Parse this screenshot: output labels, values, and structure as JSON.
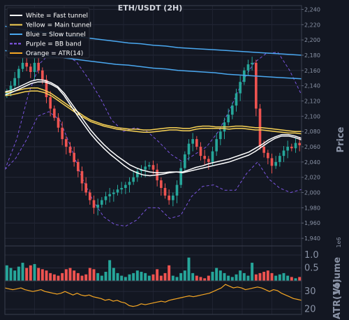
{
  "chart_data": {
    "type": "candlestick",
    "title": "ETH/USDT (2H)",
    "price_panel": {
      "ylabel": "Price",
      "yticks": [
        1940,
        1960,
        1980,
        2000,
        2020,
        2040,
        2060,
        2080,
        2100,
        2120,
        2140,
        2160,
        2180,
        2200,
        2220,
        2240
      ],
      "ylim": [
        1930,
        2245
      ],
      "grid": true,
      "legend": [
        {
          "label": "White = Fast tunnel",
          "color": "#ffffff",
          "style": "solid"
        },
        {
          "label": "Yellow = Main tunnel",
          "color": "#f7d154",
          "style": "solid"
        },
        {
          "label": "Blue = Slow tunnel",
          "color": "#4aa8f0",
          "style": "solid"
        },
        {
          "label": "Purple = BB band",
          "color": "#8a5cf6",
          "style": "dashed"
        },
        {
          "label": "Orange = ATR(14)",
          "color": "#f5a623",
          "style": "solid"
        }
      ],
      "legend_position": "top-left",
      "up_color": "#26a69a",
      "down_color": "#ef5350",
      "close_series": [
        2132,
        2140,
        2150,
        2162,
        2170,
        2165,
        2158,
        2170,
        2160,
        2148,
        2125,
        2110,
        2098,
        2085,
        2070,
        2060,
        2052,
        2040,
        2028,
        2012,
        2000,
        1990,
        1980,
        1984,
        1990,
        1995,
        1998,
        2000,
        2004,
        2006,
        2010,
        2014,
        2020,
        2028,
        2030,
        2034,
        2036,
        2030,
        2016,
        2006,
        1996,
        1990,
        1996,
        2010,
        2032,
        2050,
        2064,
        2070,
        2060,
        2048,
        2044,
        2040,
        2054,
        2070,
        2080,
        2092,
        2102,
        2114,
        2130,
        2145,
        2160,
        2168,
        2170,
        2110,
        2060,
        2052,
        2045,
        2035,
        2040,
        2048,
        2055,
        2060,
        2058,
        2065,
        2062
      ],
      "fast_tunnel": [
        [
          2132,
          2134,
          2138,
          2142,
          2146,
          2148,
          2147,
          2144,
          2139,
          2130,
          2118,
          2106,
          2094,
          2082,
          2072,
          2063,
          2055,
          2048,
          2042,
          2036,
          2032,
          2029,
          2027,
          2026,
          2026,
          2027,
          2027,
          2026,
          2028,
          2030,
          2032,
          2034,
          2036,
          2038,
          2040,
          2043,
          2046,
          2049,
          2054,
          2060,
          2066,
          2071,
          2074,
          2074,
          2072,
          2069
        ],
        [
          2128,
          2131,
          2135,
          2139,
          2143,
          2145,
          2145,
          2142,
          2137,
          2127,
          2114,
          2101,
          2089,
          2077,
          2067,
          2058,
          2050,
          2043,
          2036,
          2030,
          2026,
          2023,
          2022,
          2023,
          2024,
          2026,
          2027,
          2027,
          2030,
          2033,
          2035,
          2038,
          2040,
          2042,
          2044,
          2047,
          2050,
          2053,
          2058,
          2063,
          2069,
          2073,
          2076,
          2076,
          2074,
          2071
        ]
      ],
      "main_tunnel": [
        [
          2131,
          2132,
          2134,
          2136,
          2137,
          2137,
          2134,
          2130,
          2124,
          2118,
          2112,
          2106,
          2100,
          2095,
          2092,
          2089,
          2087,
          2085,
          2084,
          2083,
          2083,
          2082,
          2082,
          2083,
          2084,
          2085,
          2085,
          2084,
          2084,
          2086,
          2087,
          2087,
          2086,
          2086,
          2086,
          2087,
          2087,
          2086,
          2085,
          2085,
          2084,
          2083,
          2082,
          2081,
          2080,
          2080
        ],
        [
          2127,
          2128,
          2130,
          2132,
          2133,
          2133,
          2131,
          2127,
          2121,
          2115,
          2109,
          2103,
          2098,
          2093,
          2090,
          2087,
          2085,
          2083,
          2082,
          2081,
          2080,
          2079,
          2079,
          2080,
          2081,
          2082,
          2082,
          2081,
          2081,
          2083,
          2084,
          2084,
          2084,
          2084,
          2083,
          2084,
          2084,
          2083,
          2082,
          2082,
          2081,
          2080,
          2079,
          2078,
          2078,
          2077
        ]
      ],
      "slow_tunnel": [
        [
          2218,
          2215,
          2212,
          2210,
          2208,
          2206,
          2204,
          2202,
          2200,
          2198,
          2196,
          2195,
          2193,
          2192,
          2190,
          2189,
          2188,
          2187,
          2186,
          2185,
          2184,
          2183,
          2182,
          2181,
          2180
        ],
        [
          2186,
          2184,
          2182,
          2180,
          2178,
          2176,
          2174,
          2172,
          2170,
          2168,
          2167,
          2165,
          2163,
          2162,
          2160,
          2159,
          2158,
          2157,
          2155,
          2154,
          2153,
          2152,
          2151,
          2150,
          2149
        ]
      ],
      "bb_upper": [
        2030,
        2070,
        2130,
        2170,
        2185,
        2180,
        2172,
        2150,
        2125,
        2095,
        2080,
        2085,
        2080,
        2066,
        2050,
        2040,
        2050,
        2060,
        2080,
        2110,
        2145,
        2170,
        2182,
        2184,
        2160,
        2128
      ],
      "bb_lower": [
        2030,
        2045,
        2070,
        2100,
        2106,
        2095,
        2060,
        2020,
        1990,
        1968,
        1958,
        1956,
        1964,
        1980,
        1980,
        1966,
        1970,
        1995,
        2008,
        2010,
        2003,
        2003,
        2025,
        2040,
        2018,
        2006,
        2000,
        2004
      ]
    },
    "volume_panel": {
      "ylabel": "Volume",
      "scale_label": "1e6",
      "yticks": [
        0.5,
        1.0
      ],
      "ylim": [
        0,
        1.35
      ],
      "values": [
        0.6,
        0.5,
        0.4,
        0.55,
        0.7,
        0.5,
        0.6,
        0.65,
        0.5,
        0.45,
        0.4,
        0.3,
        0.25,
        0.2,
        0.3,
        0.45,
        0.5,
        0.4,
        0.3,
        0.2,
        0.25,
        0.5,
        0.45,
        0.3,
        0.2,
        0.35,
        0.8,
        0.5,
        0.3,
        0.2,
        0.15,
        0.25,
        0.3,
        0.4,
        0.35,
        0.3,
        0.2,
        0.25,
        0.45,
        0.2,
        0.3,
        0.6,
        0.2,
        0.15,
        0.3,
        0.4,
        0.9,
        0.3,
        0.2,
        0.15,
        0.1,
        0.2,
        0.35,
        0.5,
        0.4,
        0.3,
        0.2,
        0.15,
        0.25,
        0.4,
        0.3,
        0.2,
        0.7,
        0.25,
        0.3,
        0.35,
        0.4,
        0.3,
        0.2,
        0.25,
        0.3,
        0.2,
        0.15,
        0.1,
        0.15
      ]
    },
    "atr_panel": {
      "ylabel": "ATR(14)",
      "yticks": [
        20,
        30
      ],
      "ylim": [
        17,
        36
      ],
      "color": "#f5a623",
      "values": [
        32,
        31.5,
        31,
        31.5,
        32,
        31,
        30.5,
        30,
        30.5,
        31,
        30,
        29.5,
        29,
        28.5,
        29,
        30,
        29,
        28,
        29,
        28,
        27.5,
        28,
        27,
        26.5,
        26,
        25,
        25.5,
        24.5,
        25,
        24,
        23.5,
        22,
        21.5,
        22,
        23,
        22.5,
        23,
        23.5,
        24,
        24.5,
        24,
        25,
        25.5,
        26,
        26.5,
        27,
        27.5,
        27,
        27.5,
        28,
        28.5,
        29,
        30,
        31,
        32,
        34,
        33,
        32,
        32.5,
        32,
        31,
        31.5,
        32,
        32.5,
        32,
        31,
        30,
        31,
        30.5,
        29,
        28,
        27,
        26,
        25.5,
        25
      ]
    }
  }
}
